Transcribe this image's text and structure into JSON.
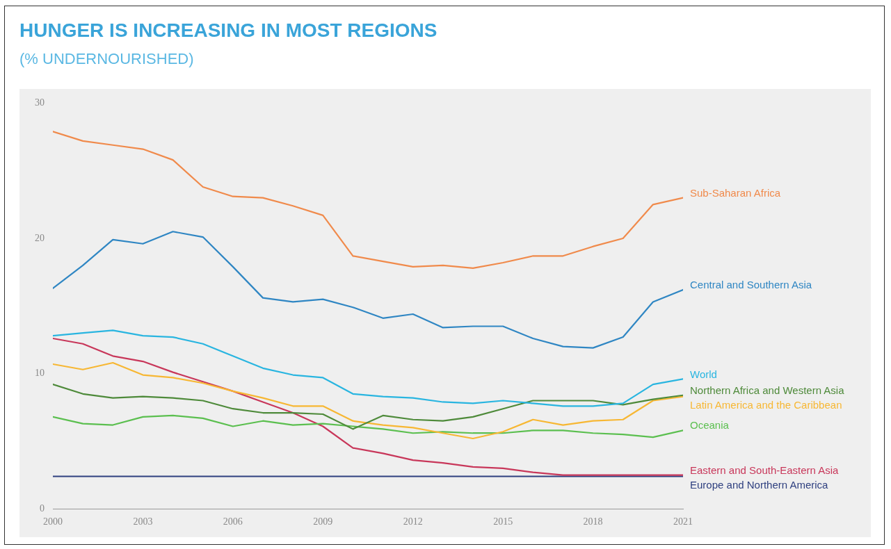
{
  "chart_data": {
    "type": "line",
    "title": "HUNGER IS INCREASING IN MOST REGIONS",
    "subtitle": "(% UNDERNOURISHED)",
    "x": [
      2000,
      2001,
      2002,
      2003,
      2004,
      2005,
      2006,
      2007,
      2008,
      2009,
      2010,
      2011,
      2012,
      2013,
      2014,
      2015,
      2016,
      2017,
      2018,
      2019,
      2020,
      2021
    ],
    "xlim": [
      2000,
      2021
    ],
    "xticks": [
      2000,
      2003,
      2006,
      2009,
      2012,
      2015,
      2018,
      2021
    ],
    "ylim": [
      0,
      30
    ],
    "yticks": [
      0,
      10,
      20,
      30
    ],
    "grid": false,
    "legend": false,
    "marker": "none",
    "line_style": "solid",
    "series": [
      {
        "name": "Sub-Saharan Africa",
        "color": "#f08a4b",
        "values": [
          27.9,
          27.2,
          26.9,
          26.6,
          25.8,
          23.8,
          23.1,
          23.0,
          22.4,
          21.7,
          18.7,
          18.3,
          17.9,
          18.0,
          17.8,
          18.2,
          18.7,
          18.7,
          19.4,
          20.0,
          22.5,
          23.0
        ]
      },
      {
        "name": "Central and Southern Asia",
        "color": "#2f86c3",
        "values": [
          16.3,
          18.0,
          19.9,
          19.6,
          20.5,
          20.1,
          17.9,
          15.6,
          15.3,
          15.5,
          14.9,
          14.1,
          14.4,
          13.4,
          13.5,
          13.5,
          12.6,
          12.0,
          11.9,
          12.7,
          15.3,
          16.2
        ]
      },
      {
        "name": "World",
        "color": "#29b5e0",
        "values": [
          12.8,
          13.0,
          13.2,
          12.8,
          12.7,
          12.2,
          11.3,
          10.4,
          9.9,
          9.7,
          8.5,
          8.3,
          8.2,
          7.9,
          7.8,
          8.0,
          7.8,
          7.6,
          7.6,
          7.8,
          9.2,
          9.6
        ]
      },
      {
        "name": "Northern Africa and Western Asia",
        "color": "#4e8a3a",
        "values": [
          9.2,
          8.5,
          8.2,
          8.3,
          8.2,
          8.0,
          7.4,
          7.1,
          7.1,
          7.0,
          5.9,
          6.9,
          6.6,
          6.5,
          6.8,
          7.4,
          8.0,
          8.0,
          8.0,
          7.7,
          8.1,
          8.4
        ]
      },
      {
        "name": "Latin America and the Caribbean",
        "color": "#f7b733",
        "values": [
          10.7,
          10.3,
          10.8,
          9.9,
          9.7,
          9.3,
          8.7,
          8.2,
          7.6,
          7.6,
          6.5,
          6.2,
          6.0,
          5.6,
          5.2,
          5.7,
          6.6,
          6.2,
          6.5,
          6.6,
          8.0,
          8.3
        ]
      },
      {
        "name": "Oceania",
        "color": "#5bbf4f",
        "values": [
          6.8,
          6.3,
          6.2,
          6.8,
          6.9,
          6.7,
          6.1,
          6.5,
          6.2,
          6.3,
          6.1,
          5.9,
          5.6,
          5.7,
          5.6,
          5.6,
          5.8,
          5.8,
          5.6,
          5.5,
          5.3,
          5.8
        ]
      },
      {
        "name": "Eastern and South-Eastern Asia",
        "color": "#c8375a",
        "values": [
          12.6,
          12.2,
          11.3,
          10.9,
          10.1,
          9.4,
          8.7,
          7.9,
          7.1,
          6.1,
          4.5,
          4.1,
          3.6,
          3.4,
          3.1,
          3.0,
          2.7,
          2.5,
          2.5,
          2.5,
          2.5,
          2.5
        ]
      },
      {
        "name": "Europe and Northern America",
        "color": "#2e3f7f",
        "values": [
          2.4,
          2.4,
          2.4,
          2.4,
          2.4,
          2.4,
          2.4,
          2.4,
          2.4,
          2.4,
          2.4,
          2.4,
          2.4,
          2.4,
          2.4,
          2.4,
          2.4,
          2.4,
          2.4,
          2.4,
          2.4,
          2.4
        ]
      }
    ]
  }
}
